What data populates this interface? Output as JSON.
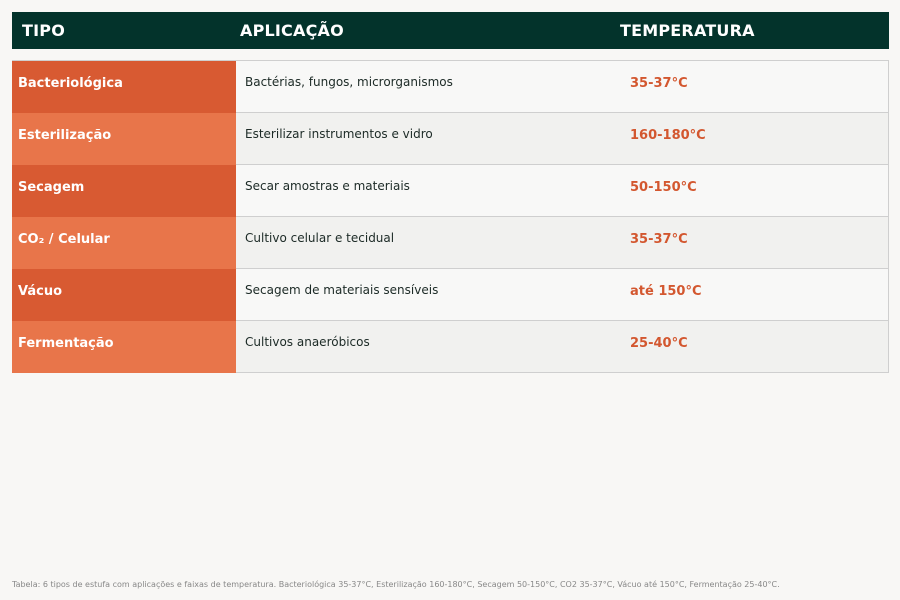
{
  "header": {
    "tipo": "TIPO",
    "aplicacao": "APLICAÇÃO",
    "temperatura": "TEMPERATURA"
  },
  "rows": [
    {
      "tipo": "Bacteriológica",
      "aplicacao": "Bactérias, fungos, microrganismos",
      "temperatura": "35-37°C"
    },
    {
      "tipo": "Esterilização",
      "aplicacao": "Esterilizar instrumentos e vidro",
      "temperatura": "160-180°C"
    },
    {
      "tipo": "Secagem",
      "aplicacao": "Secar amostras e materiais",
      "temperatura": "50-150°C"
    },
    {
      "tipo": "CO₂ / Celular",
      "aplicacao": "Cultivo celular e tecidual",
      "temperatura": "35-37°C"
    },
    {
      "tipo": "Vácuo",
      "aplicacao": "Secagem de materiais sensíveis",
      "temperatura": "até 150°C"
    },
    {
      "tipo": "Fermentação",
      "aplicacao": "Cultivos anaeróbicos",
      "temperatura": "25-40°C"
    }
  ],
  "caption": "Tabela: 6 tipos de estufa com aplicações e faixas de temperatura. Bacteriológica 35-37°C, Esterilização 160-180°C, Secagem 50-150°C, CO2 35-37°C, Vácuo até 150°C, Fermentação 25-40°C.",
  "colors": {
    "header_bg": "#03332b",
    "tipo_dark": "#d85a32",
    "tipo_light": "#e8754a",
    "temperature_text": "#d3572f"
  }
}
